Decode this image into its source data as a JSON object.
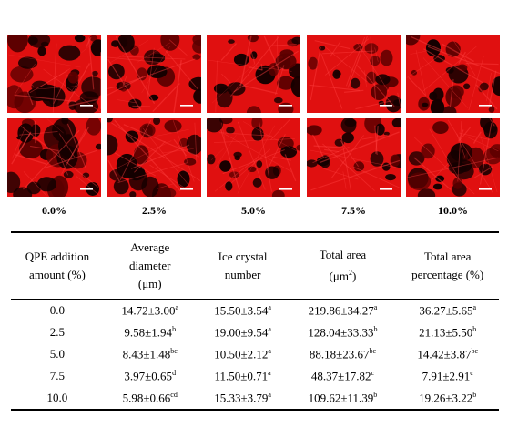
{
  "image_panels": {
    "labels": [
      "0.0%",
      "2.5%",
      "5.0%",
      "7.5%",
      "10.0%"
    ],
    "panel_color": "#e01010"
  },
  "table": {
    "headers": [
      {
        "line1": "QPE addition",
        "line2": "amount (%)",
        "line3": ""
      },
      {
        "line1": "Average",
        "line2": "diameter",
        "line3": "(μm)"
      },
      {
        "line1": "Ice crystal",
        "line2": "number",
        "line3": ""
      },
      {
        "line1": "Total area",
        "line2": "(μm",
        "sup": "2",
        "tail": ")"
      },
      {
        "line1": "Total area",
        "line2": "percentage (%)",
        "line3": ""
      }
    ],
    "rows": [
      {
        "amount": "0.0",
        "diameter": "14.72±3.00",
        "diameter_sup": "a",
        "number": "15.50±3.54",
        "number_sup": "a",
        "area": "219.86±34.27",
        "area_sup": "a",
        "pct": "36.27±5.65",
        "pct_sup": "a"
      },
      {
        "amount": "2.5",
        "diameter": "9.58±1.94",
        "diameter_sup": "b",
        "number": "19.00±9.54",
        "number_sup": "a",
        "area": "128.04±33.33",
        "area_sup": "b",
        "pct": "21.13±5.50",
        "pct_sup": "b"
      },
      {
        "amount": "5.0",
        "diameter": "8.43±1.48",
        "diameter_sup": "bc",
        "number": "10.50±2.12",
        "number_sup": "a",
        "area": "88.18±23.67",
        "area_sup": "bc",
        "pct": "14.42±3.87",
        "pct_sup": "bc"
      },
      {
        "amount": "7.5",
        "diameter": "3.97±0.65",
        "diameter_sup": "d",
        "number": "11.50±0.71",
        "number_sup": "a",
        "area": "48.37±17.82",
        "area_sup": "c",
        "pct": "7.91±2.91",
        "pct_sup": "c"
      },
      {
        "amount": "10.0",
        "diameter": "5.98±0.66",
        "diameter_sup": "cd",
        "number": "15.33±3.79",
        "number_sup": "a",
        "area": "109.62±11.39",
        "area_sup": "b",
        "pct": "19.26±3.22",
        "pct_sup": "b"
      }
    ]
  }
}
